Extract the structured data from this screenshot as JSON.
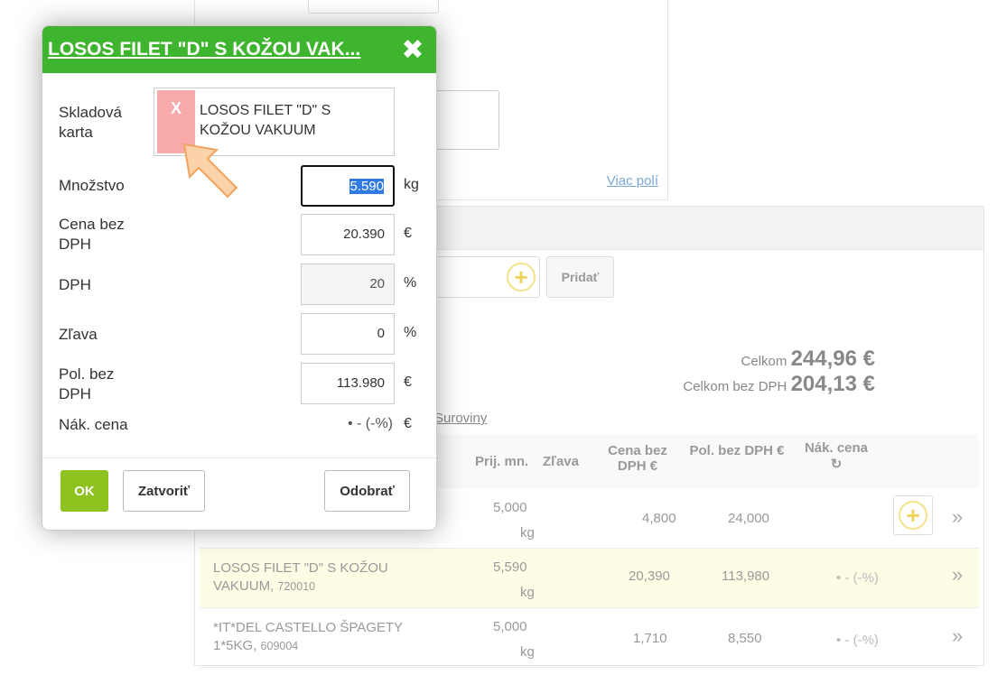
{
  "background": {
    "more_fields": "Viac polí",
    "add_button": "Pridať",
    "total_label": "Celkom",
    "total_value": "244,96 €",
    "total_net_label": "Celkom bez DPH",
    "total_net_value": "204,13 €",
    "category_link": "Suroviny",
    "columns": [
      "Prij. mn.",
      "Zľava",
      "Cena bez DPH €",
      "Pol. bez DPH €",
      "Nák. cena"
    ],
    "rows": [
      {
        "name": "",
        "code": "",
        "qty": "5,000",
        "unit": "kg",
        "price": "4,800",
        "total": "24,000",
        "purchase": ""
      },
      {
        "name": "LOSOS FILET \"D\" S KOŽOU VAKUUM,",
        "code": "720010",
        "qty": "5,590",
        "unit": "kg",
        "price": "20,390",
        "total": "113,980",
        "purchase": "• - (-%)"
      },
      {
        "name": "*IT*DEL CASTELLO ŠPAGETY 1*5KG,",
        "code": "609004",
        "qty": "5,000",
        "unit": "kg",
        "price": "1,710",
        "total": "8,550",
        "purchase": "• - (-%)"
      }
    ]
  },
  "modal": {
    "title": "LOSOS FILET \"D\" S KOŽOU VAK...",
    "card_label": "Skladová karta",
    "card_remove": "X",
    "card_value": "LOSOS FILET \"D\" S KOŽOU VAKUUM",
    "qty_label": "Množstvo",
    "qty": "5.590",
    "qty_unit": "kg",
    "price_label": "Cena bez DPH",
    "price": "20.390",
    "price_unit": "€",
    "vat_label": "DPH",
    "vat": "20",
    "vat_unit": "%",
    "discount_label": "Zľava",
    "discount": "0",
    "discount_unit": "%",
    "total_label": "Pol. bez DPH",
    "total": "113.980",
    "total_unit": "€",
    "purchase_label": "Nák. cena",
    "purchase": "• - (-%)",
    "purchase_unit": "€",
    "ok": "OK",
    "close": "Zatvoriť",
    "remove": "Odobrať"
  },
  "colors": {
    "header": "#3fb52f",
    "ok": "#8dc21f",
    "highlight_row": "#fdfde6"
  }
}
